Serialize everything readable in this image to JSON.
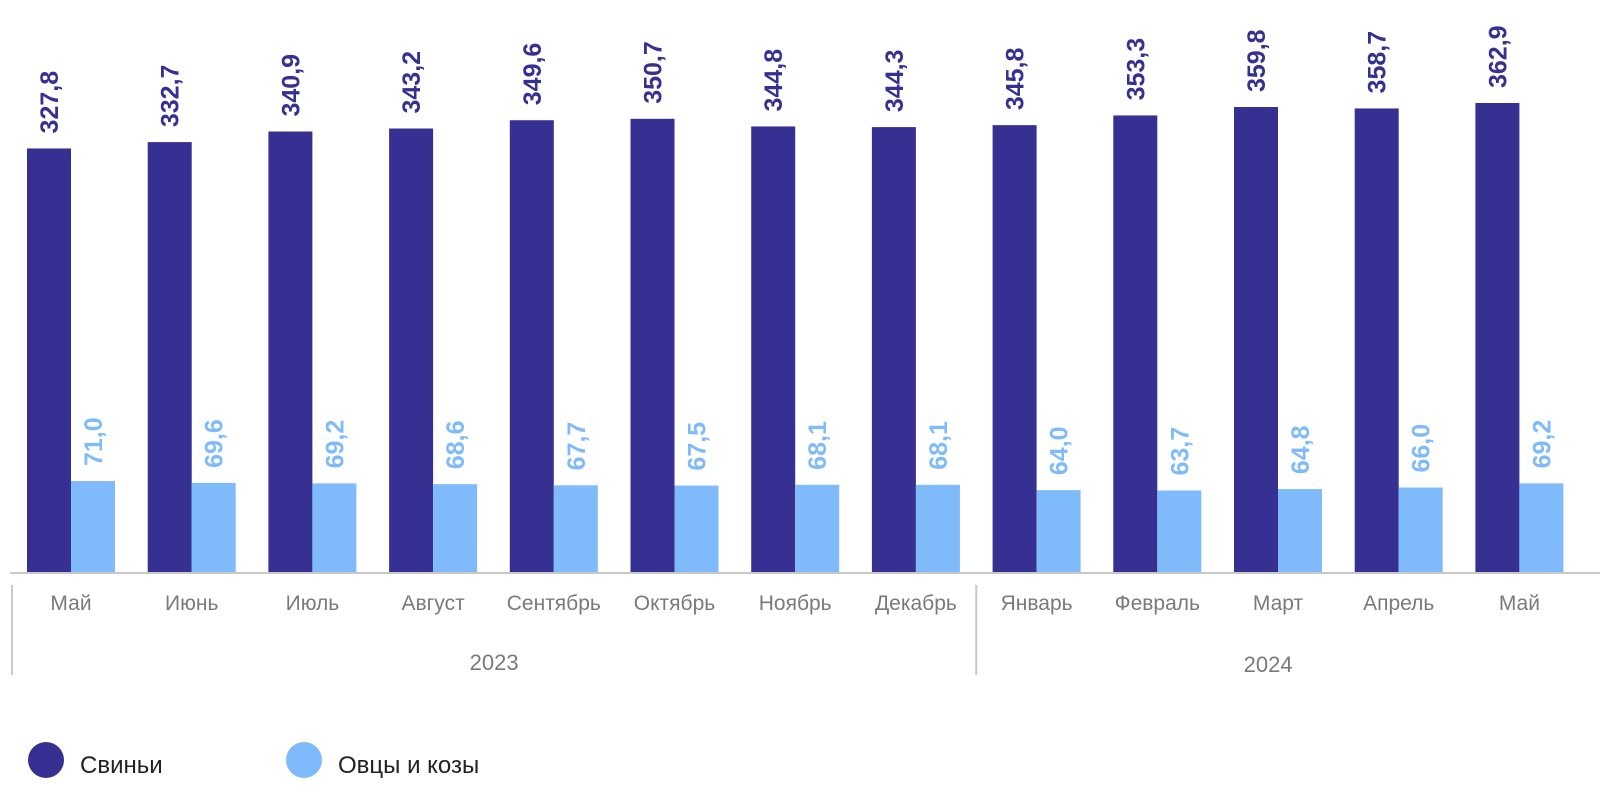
{
  "chart_data": {
    "type": "bar",
    "categories": [
      "Май",
      "Июнь",
      "Июль",
      "Август",
      "Сентябрь",
      "Октябрь",
      "Ноябрь",
      "Декабрь",
      "Январь",
      "Февраль",
      "Март",
      "Апрель",
      "Май"
    ],
    "year_groups": [
      {
        "label": "2023",
        "start": 0,
        "end": 7
      },
      {
        "label": "2024",
        "start": 8,
        "end": 12
      }
    ],
    "series": [
      {
        "name": "Свиньи",
        "color": "#363092",
        "values": [
          327.8,
          332.7,
          340.9,
          343.2,
          349.6,
          350.7,
          344.8,
          344.3,
          345.8,
          353.3,
          359.8,
          358.7,
          362.9
        ],
        "labels": [
          "327,8",
          "332,7",
          "340,9",
          "343,2",
          "349,6",
          "350,7",
          "344,8",
          "344,3",
          "345,8",
          "353,3",
          "359,8",
          "358,7",
          "362,9"
        ]
      },
      {
        "name": "Овцы и козы",
        "color": "#7FBBFA",
        "values": [
          71.0,
          69.6,
          69.2,
          68.6,
          67.7,
          67.5,
          68.1,
          68.1,
          64.0,
          63.7,
          64.8,
          66.0,
          69.2
        ],
        "labels": [
          "71,0",
          "69,6",
          "69,2",
          "68,6",
          "67,7",
          "67,5",
          "68,1",
          "68,1",
          "64,0",
          "63,7",
          "64,8",
          "66,0",
          "69,2"
        ]
      }
    ],
    "title": "",
    "xlabel": "",
    "ylabel": "",
    "ylim": [
      0,
      362.9
    ],
    "grid": false,
    "legend_position": "bottom-left"
  },
  "legend": {
    "pigs_label": "Свиньи",
    "pigs_color": "#363092",
    "sheep_label": "Овцы и козы",
    "sheep_color": "#7FBBFA"
  }
}
